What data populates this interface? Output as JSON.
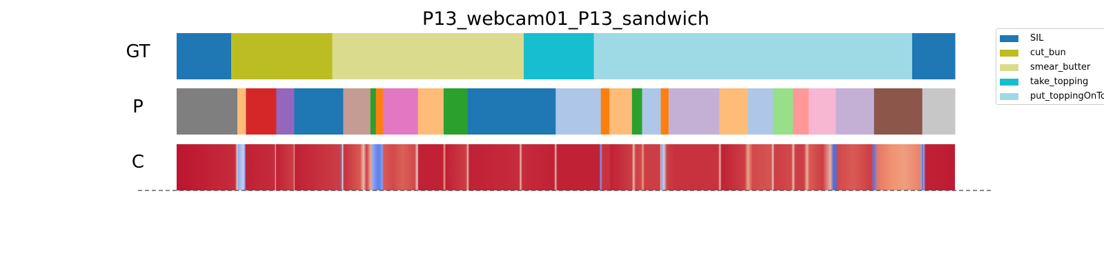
{
  "chart_data": {
    "type": "segmentation",
    "title": "P13_webcam01_P13_sandwich",
    "x_range": [
      0,
      1000
    ],
    "rows": [
      {
        "label": "GT",
        "segments": [
          {
            "start": 0,
            "end": 70,
            "color": "#1f77b4"
          },
          {
            "start": 70,
            "end": 200,
            "color": "#bcbd22"
          },
          {
            "start": 200,
            "end": 446,
            "color": "#dbdb8d"
          },
          {
            "start": 446,
            "end": 536,
            "color": "#17becf"
          },
          {
            "start": 536,
            "end": 945,
            "color": "#9edae5"
          },
          {
            "start": 945,
            "end": 1000,
            "color": "#1f77b4"
          }
        ]
      },
      {
        "label": "P",
        "segments": [
          {
            "start": 0,
            "end": 78,
            "color": "#7f7f7f"
          },
          {
            "start": 78,
            "end": 89,
            "color": "#ffbb78"
          },
          {
            "start": 89,
            "end": 128,
            "color": "#d62728"
          },
          {
            "start": 128,
            "end": 151,
            "color": "#9467bd"
          },
          {
            "start": 151,
            "end": 214,
            "color": "#1f77b4"
          },
          {
            "start": 214,
            "end": 249,
            "color": "#c49c94"
          },
          {
            "start": 249,
            "end": 256,
            "color": "#2ca02c"
          },
          {
            "start": 256,
            "end": 265,
            "color": "#ff7f0e"
          },
          {
            "start": 265,
            "end": 310,
            "color": "#e377c2"
          },
          {
            "start": 310,
            "end": 343,
            "color": "#ffbb78"
          },
          {
            "start": 343,
            "end": 374,
            "color": "#2ca02c"
          },
          {
            "start": 374,
            "end": 487,
            "color": "#1f77b4"
          },
          {
            "start": 487,
            "end": 545,
            "color": "#aec7e8"
          },
          {
            "start": 545,
            "end": 556,
            "color": "#ff7f0e"
          },
          {
            "start": 556,
            "end": 585,
            "color": "#ffbb78"
          },
          {
            "start": 585,
            "end": 598,
            "color": "#2ca02c"
          },
          {
            "start": 598,
            "end": 622,
            "color": "#aec7e8"
          },
          {
            "start": 622,
            "end": 632,
            "color": "#ff7f0e"
          },
          {
            "start": 632,
            "end": 697,
            "color": "#c5b0d5"
          },
          {
            "start": 697,
            "end": 734,
            "color": "#ffbb78"
          },
          {
            "start": 734,
            "end": 766,
            "color": "#aec7e8"
          },
          {
            "start": 766,
            "end": 792,
            "color": "#98df8a"
          },
          {
            "start": 792,
            "end": 812,
            "color": "#ff9896"
          },
          {
            "start": 812,
            "end": 847,
            "color": "#f7b6d2"
          },
          {
            "start": 847,
            "end": 896,
            "color": "#c5b0d5"
          },
          {
            "start": 896,
            "end": 958,
            "color": "#8c564b"
          },
          {
            "start": 958,
            "end": 1000,
            "color": "#c7c7c7"
          }
        ]
      },
      {
        "label": "C",
        "colormap": "coolwarm",
        "stops": [
          [
            0,
            0.97
          ],
          [
            75,
            0.93
          ],
          [
            78,
            0.55
          ],
          [
            79,
            0.3
          ],
          [
            86,
            0.45
          ],
          [
            88,
            0.2
          ],
          [
            89,
            0.95
          ],
          [
            126,
            0.93
          ],
          [
            127,
            0.6
          ],
          [
            128,
            0.95
          ],
          [
            150,
            0.9
          ],
          [
            151,
            0.65
          ],
          [
            152,
            0.95
          ],
          [
            210,
            0.9
          ],
          [
            212,
            0.15
          ],
          [
            213,
            0.5
          ],
          [
            215,
            0.92
          ],
          [
            236,
            0.85
          ],
          [
            240,
            0.6
          ],
          [
            244,
            0.9
          ],
          [
            249,
            0.7
          ],
          [
            252,
            0.3
          ],
          [
            256,
            0.2
          ],
          [
            260,
            0.15
          ],
          [
            264,
            0.25
          ],
          [
            266,
            0.85
          ],
          [
            278,
            0.88
          ],
          [
            290,
            0.84
          ],
          [
            306,
            0.88
          ],
          [
            309,
            0.55
          ],
          [
            311,
            0.95
          ],
          [
            342,
            0.95
          ],
          [
            344,
            0.7
          ],
          [
            346,
            0.95
          ],
          [
            372,
            0.9
          ],
          [
            374,
            0.6
          ],
          [
            376,
            0.95
          ],
          [
            440,
            0.93
          ],
          [
            442,
            0.6
          ],
          [
            444,
            0.93
          ],
          [
            485,
            0.95
          ],
          [
            487,
            0.6
          ],
          [
            489,
            0.95
          ],
          [
            543,
            0.95
          ],
          [
            545,
            0.25
          ],
          [
            547,
            0.92
          ],
          [
            556,
            0.92
          ],
          [
            558,
            0.95
          ],
          [
            585,
            0.9
          ],
          [
            587,
            0.6
          ],
          [
            590,
            0.9
          ],
          [
            597,
            0.88
          ],
          [
            599,
            0.7
          ],
          [
            601,
            0.9
          ],
          [
            621,
            0.9
          ],
          [
            622,
            0.55
          ],
          [
            623,
            0.25
          ],
          [
            626,
            0.45
          ],
          [
            630,
            0.9
          ],
          [
            640,
            0.92
          ],
          [
            696,
            0.92
          ],
          [
            698,
            0.6
          ],
          [
            700,
            0.95
          ],
          [
            730,
            0.9
          ],
          [
            734,
            0.7
          ],
          [
            740,
            0.88
          ],
          [
            764,
            0.86
          ],
          [
            766,
            0.55
          ],
          [
            768,
            0.9
          ],
          [
            790,
            0.88
          ],
          [
            792,
            0.6
          ],
          [
            795,
            0.9
          ],
          [
            806,
            0.9
          ],
          [
            810,
            0.65
          ],
          [
            813,
            0.85
          ],
          [
            830,
            0.9
          ],
          [
            840,
            0.65
          ],
          [
            844,
            0.1
          ],
          [
            847,
            0.1
          ],
          [
            849,
            0.88
          ],
          [
            870,
            0.85
          ],
          [
            892,
            0.9
          ],
          [
            897,
            0.15
          ],
          [
            900,
            0.8
          ],
          [
            920,
            0.75
          ],
          [
            935,
            0.72
          ],
          [
            955,
            0.78
          ],
          [
            957,
            0.3
          ],
          [
            958,
            0.1
          ],
          [
            960,
            0.3
          ],
          [
            962,
            0.95
          ],
          [
            1000,
            0.96
          ]
        ]
      }
    ],
    "legend": {
      "placement": "top-right",
      "entries": [
        {
          "label": "SIL",
          "color": "#1f77b4"
        },
        {
          "label": "cut_bun",
          "color": "#bcbd22"
        },
        {
          "label": "smear_butter",
          "color": "#dbdb8d"
        },
        {
          "label": "take_topping",
          "color": "#17becf"
        },
        {
          "label": "put_toppingOnTo",
          "color": "#9edae5"
        }
      ]
    }
  }
}
